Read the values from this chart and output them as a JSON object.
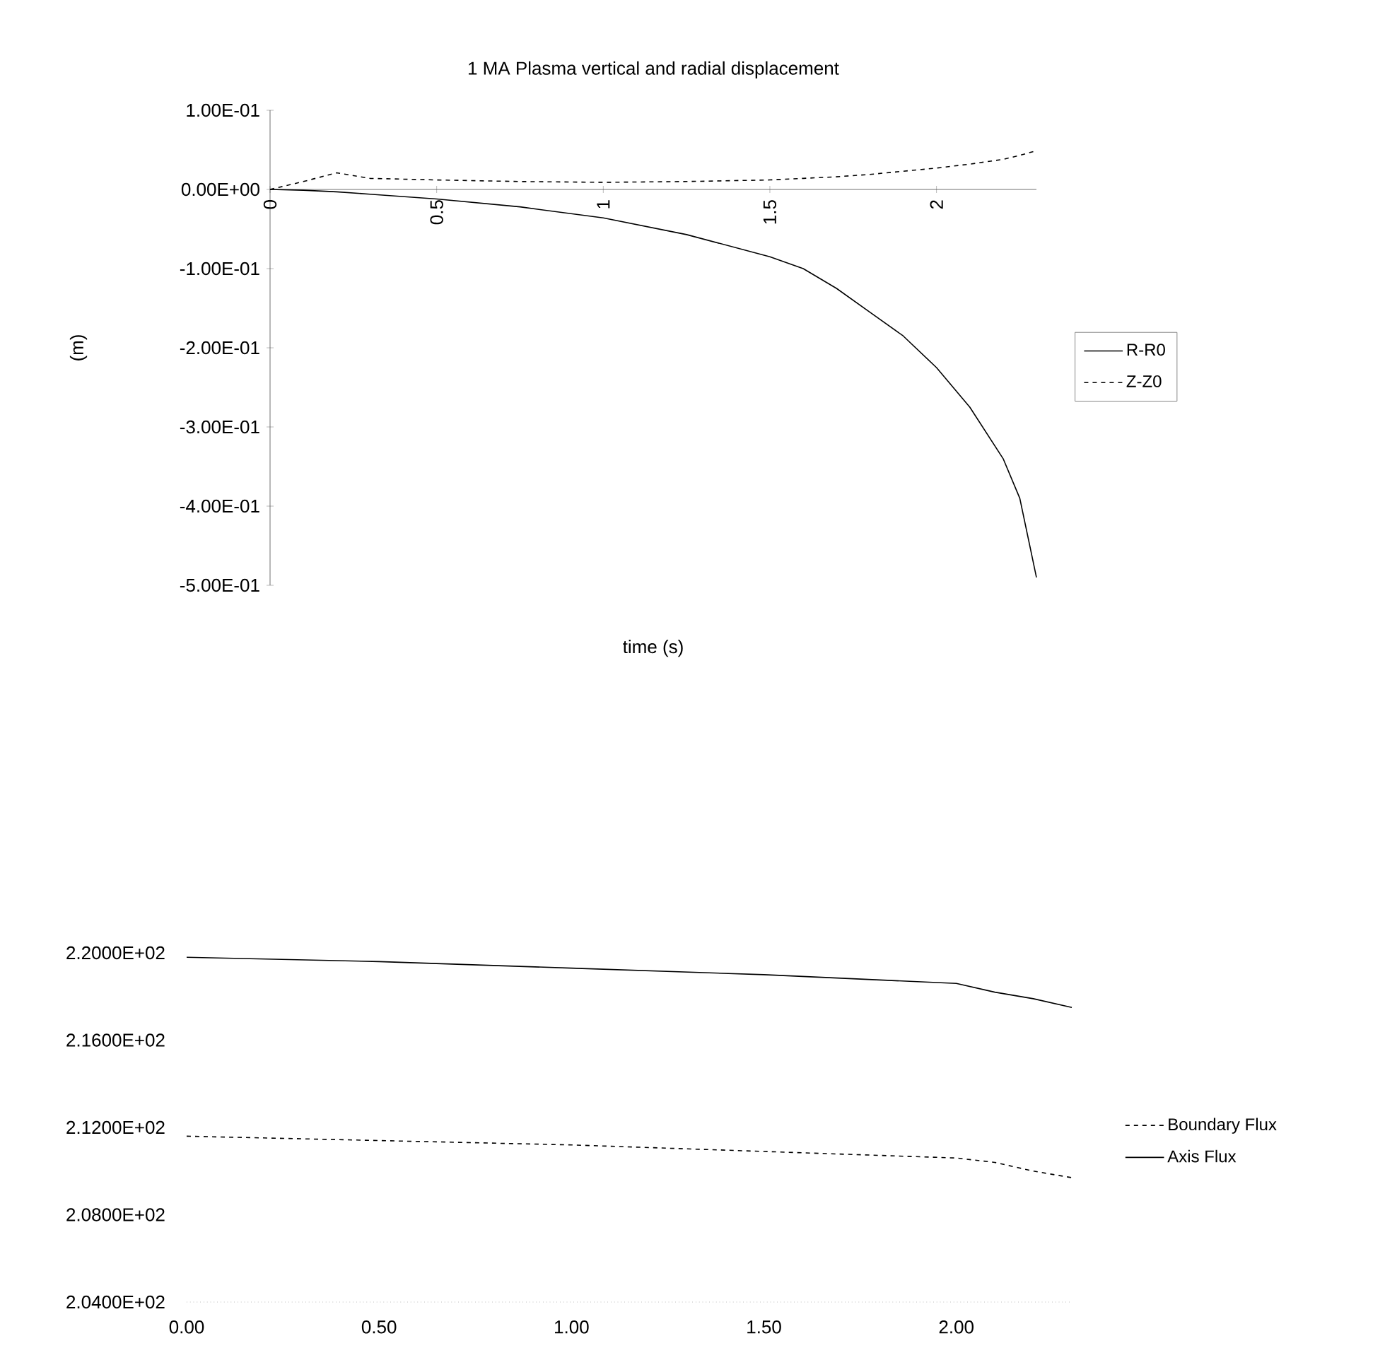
{
  "chart_data": [
    {
      "type": "line",
      "title": "1 MA Plasma vertical and radial displacement",
      "xlabel": "time (s)",
      "ylabel": "(m)",
      "x": [
        0,
        0.1,
        0.2,
        0.3,
        0.5,
        0.75,
        1.0,
        1.25,
        1.5,
        1.6,
        1.7,
        1.8,
        1.9,
        2.0,
        2.1,
        2.2,
        2.25,
        2.3
      ],
      "series": [
        {
          "name": "R-R0",
          "color": "#000000",
          "line_style": "solid",
          "values": [
            0,
            -0.001,
            -0.003,
            -0.006,
            -0.012,
            -0.022,
            -0.036,
            -0.057,
            -0.085,
            -0.1,
            -0.125,
            -0.155,
            -0.185,
            -0.225,
            -0.275,
            -0.34,
            -0.39,
            -0.49
          ]
        },
        {
          "name": "Z-Z0",
          "color": "#000000",
          "line_style": "dashed",
          "values": [
            0,
            0.01,
            0.021,
            0.014,
            0.012,
            0.01,
            0.009,
            0.01,
            0.012,
            0.014,
            0.016,
            0.019,
            0.023,
            0.027,
            0.032,
            0.038,
            0.043,
            0.049
          ]
        }
      ],
      "xlim": [
        0,
        2.3
      ],
      "xticks": [
        0,
        0.5,
        1,
        1.5,
        2
      ],
      "ylim": [
        -0.5,
        0.1
      ],
      "yticks": [
        {
          "value": 0.1,
          "label": "1.00E-01"
        },
        {
          "value": 0,
          "label": "0.00E+00"
        },
        {
          "value": -0.1,
          "label": "-1.00E-01"
        },
        {
          "value": -0.2,
          "label": "-2.00E-01"
        },
        {
          "value": -0.3,
          "label": "-3.00E-01"
        },
        {
          "value": -0.4,
          "label": "-4.00E-01"
        },
        {
          "value": -0.5,
          "label": "-5.00E-01"
        }
      ],
      "legend": "right",
      "marker": "none"
    },
    {
      "type": "line",
      "x": [
        0,
        0.5,
        1.0,
        1.5,
        2.0,
        2.1,
        2.2,
        2.3
      ],
      "series": [
        {
          "name": "Boundary Flux",
          "color": "#000000",
          "line_style": "dashed",
          "values": [
            211.6,
            211.4,
            211.2,
            210.9,
            210.6,
            210.4,
            210.0,
            209.7
          ]
        },
        {
          "name": "Axis Flux",
          "color": "#000000",
          "line_style": "solid",
          "values": [
            219.8,
            219.6,
            219.3,
            219.0,
            218.6,
            218.2,
            217.9,
            217.5
          ]
        }
      ],
      "xlim": [
        0,
        2.3
      ],
      "xticks": [
        {
          "value": 0,
          "label": "0.00"
        },
        {
          "value": 0.5,
          "label": "0.50"
        },
        {
          "value": 1,
          "label": "1.00"
        },
        {
          "value": 1.5,
          "label": "1.50"
        },
        {
          "value": 2,
          "label": "2.00"
        }
      ],
      "ylim": [
        204,
        220
      ],
      "yticks": [
        {
          "value": 220,
          "label": "2.2000E+02"
        },
        {
          "value": 216,
          "label": "2.1600E+02"
        },
        {
          "value": 212,
          "label": "2.1200E+02"
        },
        {
          "value": 208,
          "label": "2.0800E+02"
        },
        {
          "value": 204,
          "label": "2.0400E+02"
        }
      ],
      "legend": "right",
      "marker": "none"
    }
  ]
}
